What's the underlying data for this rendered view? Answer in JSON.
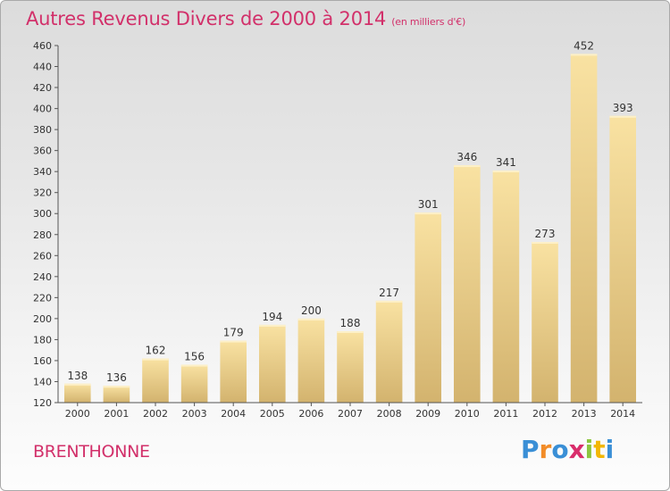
{
  "header": {
    "title": "Autres Revenus Divers de 2000 à 2014",
    "subtitle": "(en milliers d'€)"
  },
  "footer": {
    "location": "BRENTHONNE",
    "logo_letters": [
      "P",
      "r",
      "o",
      "x",
      "i",
      "t",
      "i"
    ],
    "logo_colors": [
      "#3a8fd6",
      "#f28c28",
      "#3a8fd6",
      "#d92d6b",
      "#8cc63f",
      "#f2b705",
      "#3a8fd6"
    ]
  },
  "chart_data": {
    "type": "bar",
    "title": "Autres Revenus Divers de 2000 à 2014",
    "xlabel": "",
    "ylabel": "",
    "categories": [
      "2000",
      "2001",
      "2002",
      "2003",
      "2004",
      "2005",
      "2006",
      "2007",
      "2008",
      "2009",
      "2010",
      "2011",
      "2012",
      "2013",
      "2014"
    ],
    "values": [
      138,
      136,
      162,
      156,
      179,
      194,
      200,
      188,
      217,
      301,
      346,
      341,
      273,
      452,
      393
    ],
    "ylim": [
      120,
      460
    ],
    "yticks": [
      120,
      140,
      160,
      180,
      200,
      220,
      240,
      260,
      280,
      300,
      320,
      340,
      360,
      380,
      400,
      420,
      440,
      460
    ],
    "grid": false,
    "colors": {
      "bar_light": "#f9e2a2",
      "bar_dark": "#d3b36e",
      "axis": "#555555",
      "text": "#333333"
    }
  }
}
